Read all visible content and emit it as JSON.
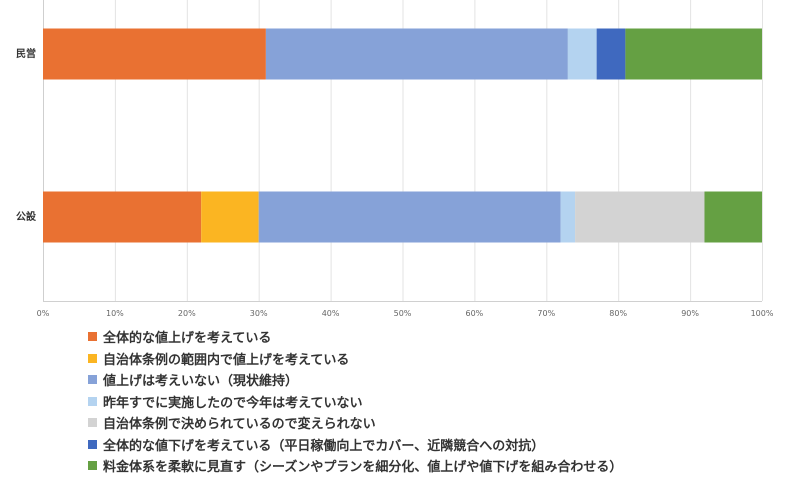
{
  "chart_data": {
    "type": "bar",
    "orientation": "horizontal",
    "stacked": "percent",
    "categories": [
      "民営",
      "公設"
    ],
    "x_ticks": [
      "0%",
      "10%",
      "20%",
      "30%",
      "40%",
      "50%",
      "60%",
      "70%",
      "80%",
      "90%",
      "100%"
    ],
    "xlim": [
      0,
      100
    ],
    "grid": true,
    "legend_position": "bottom",
    "series": [
      {
        "name": "全体的な値上げを考えている",
        "color": "#E97132",
        "values": [
          31,
          22
        ]
      },
      {
        "name": "自治体条例の範囲内で値上げを考えている",
        "color": "#FBB522",
        "values": [
          0,
          8
        ]
      },
      {
        "name": "値上げは考えいない（現状維持）",
        "color": "#86A2D8",
        "values": [
          42,
          42
        ]
      },
      {
        "name": "昨年すでに実施したので今年は考えていない",
        "color": "#B4D3F0",
        "values": [
          4,
          2
        ]
      },
      {
        "name": "自治体条例で決められているので変えられない",
        "color": "#D3D3D3",
        "values": [
          0,
          18
        ]
      },
      {
        "name": "全体的な値下げを考えている（平日稼働向上でカバー、近隣競合への対抗）",
        "color": "#3F69BF",
        "values": [
          4,
          0
        ]
      },
      {
        "name": "料金体系を柔軟に見直す（シーズンやプランを細分化、値上げや値下げを組み合わせる）",
        "color": "#65A043",
        "values": [
          19,
          8
        ]
      }
    ]
  }
}
